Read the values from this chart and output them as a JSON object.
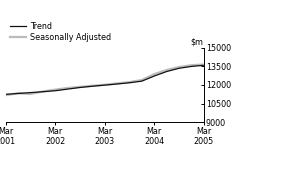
{
  "ylim": [
    9000,
    15000
  ],
  "yticks": [
    9000,
    10500,
    12000,
    13500,
    15000
  ],
  "xlim": [
    0,
    16
  ],
  "xtick_positions": [
    0,
    4,
    8,
    12,
    16
  ],
  "xtick_labels": [
    "Mar\n2001",
    "Mar\n2002",
    "Mar\n2003",
    "Mar\n2004",
    "Mar\n2005"
  ],
  "trend_color": "#111111",
  "seasonal_color": "#bbbbbb",
  "trend_linewidth": 0.9,
  "seasonal_linewidth": 1.6,
  "legend_labels": [
    "Trend",
    "Seasonally Adjusted"
  ],
  "trend_data": [
    11250,
    11320,
    11390,
    11460,
    11540,
    11670,
    11800,
    11900,
    11990,
    12080,
    12180,
    12310,
    12720,
    13080,
    13340,
    13490,
    13580
  ],
  "seasonal_data": [
    11180,
    11340,
    11280,
    11480,
    11630,
    11760,
    11850,
    11940,
    12020,
    12130,
    12230,
    12400,
    12870,
    13200,
    13440,
    13590,
    13640
  ],
  "background_color": "#ffffff",
  "font_size": 5.8
}
